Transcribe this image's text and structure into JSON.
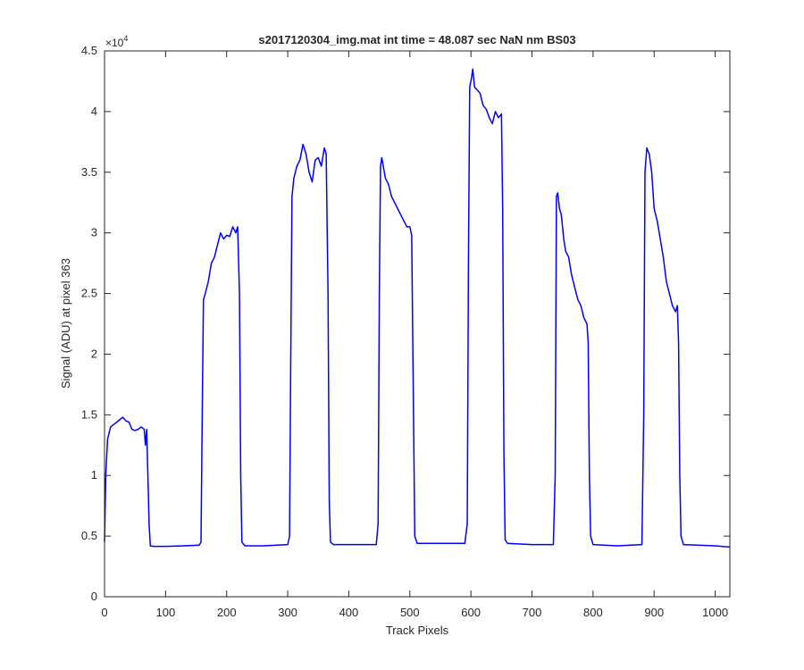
{
  "chart_data": {
    "type": "line",
    "title": "s2017120304_img.mat int time = 48.087 sec  NaN nm BS03",
    "x_label": "Track Pixels",
    "y_label": "Signal (ADU) at pixel 363",
    "y_multiplier": {
      "base": "×10",
      "exponent": "4"
    },
    "color": "#0000ff",
    "xlim": [
      0,
      1024
    ],
    "xticks": [
      0,
      100,
      200,
      300,
      400,
      500,
      600,
      700,
      800,
      900,
      1000
    ],
    "ylim": [
      0,
      4.5
    ],
    "yticks": [
      0,
      0.5,
      1,
      1.5,
      2,
      2.5,
      3,
      3.5,
      4,
      4.5
    ],
    "x": [
      0,
      2,
      5,
      10,
      15,
      20,
      25,
      30,
      35,
      40,
      45,
      50,
      55,
      60,
      65,
      67,
      69,
      71,
      73,
      75,
      80,
      100,
      130,
      155,
      158,
      160,
      162,
      165,
      170,
      175,
      180,
      185,
      190,
      195,
      200,
      205,
      210,
      215,
      218,
      221,
      223,
      225,
      230,
      260,
      300,
      303,
      305,
      307,
      310,
      315,
      320,
      325,
      330,
      335,
      340,
      345,
      350,
      355,
      360,
      363,
      366,
      368,
      370,
      375,
      410,
      445,
      448,
      450,
      452,
      454,
      460,
      465,
      470,
      475,
      480,
      485,
      490,
      495,
      500,
      503,
      506,
      508,
      512,
      550,
      590,
      594,
      596,
      598,
      601,
      603,
      606,
      610,
      615,
      620,
      625,
      630,
      635,
      640,
      645,
      650,
      652,
      654,
      656,
      660,
      700,
      735,
      738,
      740,
      742,
      745,
      748,
      752,
      755,
      760,
      765,
      770,
      775,
      780,
      785,
      790,
      792,
      794,
      796,
      800,
      840,
      880,
      883,
      885,
      888,
      892,
      896,
      900,
      905,
      910,
      915,
      920,
      925,
      930,
      935,
      938,
      940,
      942,
      944,
      948,
      1000,
      1024
    ],
    "values": [
      0.45,
      1.0,
      1.3,
      1.4,
      1.42,
      1.44,
      1.46,
      1.48,
      1.45,
      1.44,
      1.38,
      1.37,
      1.38,
      1.4,
      1.38,
      1.25,
      1.38,
      1.0,
      0.6,
      0.42,
      0.415,
      0.415,
      0.42,
      0.425,
      0.45,
      1.5,
      2.45,
      2.5,
      2.6,
      2.75,
      2.8,
      2.9,
      3.0,
      2.95,
      2.98,
      2.97,
      3.05,
      3.0,
      3.05,
      2.5,
      1.0,
      0.45,
      0.42,
      0.42,
      0.43,
      0.5,
      2.0,
      3.3,
      3.45,
      3.55,
      3.6,
      3.73,
      3.65,
      3.5,
      3.42,
      3.6,
      3.62,
      3.55,
      3.7,
      3.65,
      2.5,
      0.8,
      0.45,
      0.43,
      0.43,
      0.43,
      0.6,
      2.5,
      3.55,
      3.62,
      3.45,
      3.4,
      3.3,
      3.25,
      3.2,
      3.15,
      3.1,
      3.05,
      3.05,
      2.98,
      1.5,
      0.5,
      0.44,
      0.44,
      0.44,
      0.6,
      2.8,
      4.2,
      4.28,
      4.35,
      4.2,
      4.18,
      4.15,
      4.05,
      4.02,
      3.95,
      3.9,
      4.0,
      3.95,
      3.98,
      3.2,
      1.2,
      0.47,
      0.44,
      0.43,
      0.43,
      1.0,
      3.3,
      3.33,
      3.2,
      3.15,
      2.95,
      2.85,
      2.8,
      2.65,
      2.55,
      2.45,
      2.4,
      2.3,
      2.25,
      2.1,
      1.0,
      0.5,
      0.43,
      0.42,
      0.43,
      1.5,
      3.5,
      3.7,
      3.65,
      3.5,
      3.2,
      3.1,
      2.95,
      2.8,
      2.6,
      2.5,
      2.4,
      2.35,
      2.4,
      2.1,
      1.0,
      0.5,
      0.43,
      0.42,
      0.41
    ]
  }
}
